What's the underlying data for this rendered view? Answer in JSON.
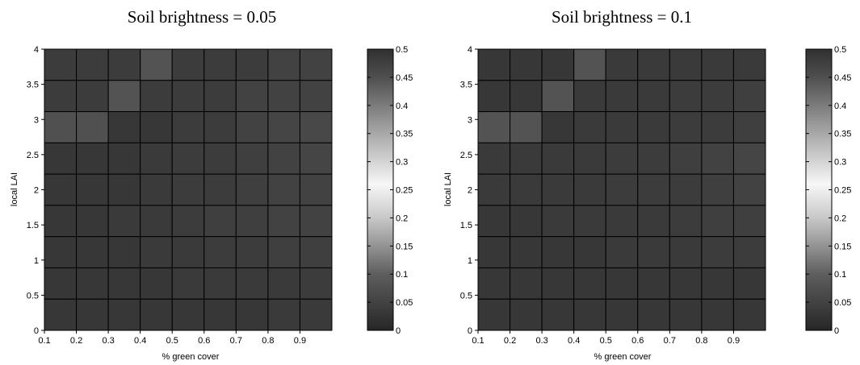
{
  "chart_data": [
    {
      "type": "heatmap",
      "title": "Soil brightness = 0.05",
      "xlabel": "% green cover",
      "ylabel": "local LAI",
      "x_tick_labels": [
        "0.1",
        "0.2",
        "0.3",
        "0.4",
        "0.5",
        "0.6",
        "0.7",
        "0.8",
        "0.9"
      ],
      "y_tick_labels": [
        "0",
        "0.5",
        "1",
        "1.5",
        "2",
        "2.5",
        "3",
        "3.5",
        "4"
      ],
      "colorbar_tick_labels": [
        "0",
        "0.05",
        "0.1",
        "0.15",
        "0.2",
        "0.25",
        "0.3",
        "0.35",
        "0.4",
        "0.45",
        "0.5"
      ],
      "clim": [
        0,
        0.5
      ],
      "colormap": "dark-to-white-to-dark",
      "grid": true,
      "rows_top_to_bottom": [
        [
          0.04,
          0.04,
          0.04,
          0.08,
          0.04,
          0.04,
          0.04,
          0.05,
          0.05
        ],
        [
          0.04,
          0.04,
          0.08,
          0.04,
          0.04,
          0.04,
          0.05,
          0.05,
          0.05
        ],
        [
          0.075,
          0.075,
          0.03,
          0.03,
          0.04,
          0.04,
          0.05,
          0.055,
          0.06
        ],
        [
          0.03,
          0.03,
          0.03,
          0.035,
          0.04,
          0.04,
          0.045,
          0.05,
          0.055
        ],
        [
          0.03,
          0.03,
          0.03,
          0.035,
          0.04,
          0.04,
          0.045,
          0.05,
          0.05
        ],
        [
          0.03,
          0.03,
          0.035,
          0.035,
          0.04,
          0.045,
          0.045,
          0.05,
          0.05
        ],
        [
          0.03,
          0.03,
          0.03,
          0.035,
          0.035,
          0.04,
          0.04,
          0.045,
          0.045
        ],
        [
          0.03,
          0.03,
          0.03,
          0.03,
          0.035,
          0.035,
          0.035,
          0.035,
          0.04
        ],
        [
          0.03,
          0.03,
          0.03,
          0.03,
          0.03,
          0.03,
          0.03,
          0.035,
          0.035
        ]
      ]
    },
    {
      "type": "heatmap",
      "title": "Soil brightness = 0.1",
      "xlabel": "% green cover",
      "ylabel": "local LAI",
      "x_tick_labels": [
        "0.1",
        "0.2",
        "0.3",
        "0.4",
        "0.5",
        "0.6",
        "0.7",
        "0.8",
        "0.9"
      ],
      "y_tick_labels": [
        "0",
        "0.5",
        "1",
        "1.5",
        "2",
        "2.5",
        "3",
        "3.5",
        "4"
      ],
      "colorbar_tick_labels": [
        "0",
        "0.05",
        "0.1",
        "0.15",
        "0.2",
        "0.25",
        "0.3",
        "0.35",
        "0.4",
        "0.45",
        "0.5"
      ],
      "clim": [
        0,
        0.5
      ],
      "colormap": "dark-to-white-to-dark",
      "grid": true,
      "rows_top_to_bottom": [
        [
          0.03,
          0.03,
          0.03,
          0.08,
          0.035,
          0.035,
          0.035,
          0.035,
          0.035
        ],
        [
          0.03,
          0.03,
          0.08,
          0.035,
          0.035,
          0.035,
          0.04,
          0.04,
          0.045
        ],
        [
          0.08,
          0.08,
          0.03,
          0.035,
          0.035,
          0.035,
          0.04,
          0.04,
          0.045
        ],
        [
          0.035,
          0.035,
          0.035,
          0.035,
          0.04,
          0.04,
          0.045,
          0.05,
          0.055
        ],
        [
          0.035,
          0.035,
          0.035,
          0.035,
          0.04,
          0.04,
          0.04,
          0.045,
          0.05
        ],
        [
          0.03,
          0.03,
          0.035,
          0.035,
          0.035,
          0.035,
          0.04,
          0.045,
          0.045
        ],
        [
          0.03,
          0.03,
          0.03,
          0.03,
          0.035,
          0.035,
          0.035,
          0.04,
          0.04
        ],
        [
          0.03,
          0.03,
          0.03,
          0.03,
          0.03,
          0.03,
          0.03,
          0.03,
          0.03
        ],
        [
          0.03,
          0.03,
          0.03,
          0.03,
          0.03,
          0.03,
          0.03,
          0.03,
          0.03
        ]
      ]
    }
  ]
}
